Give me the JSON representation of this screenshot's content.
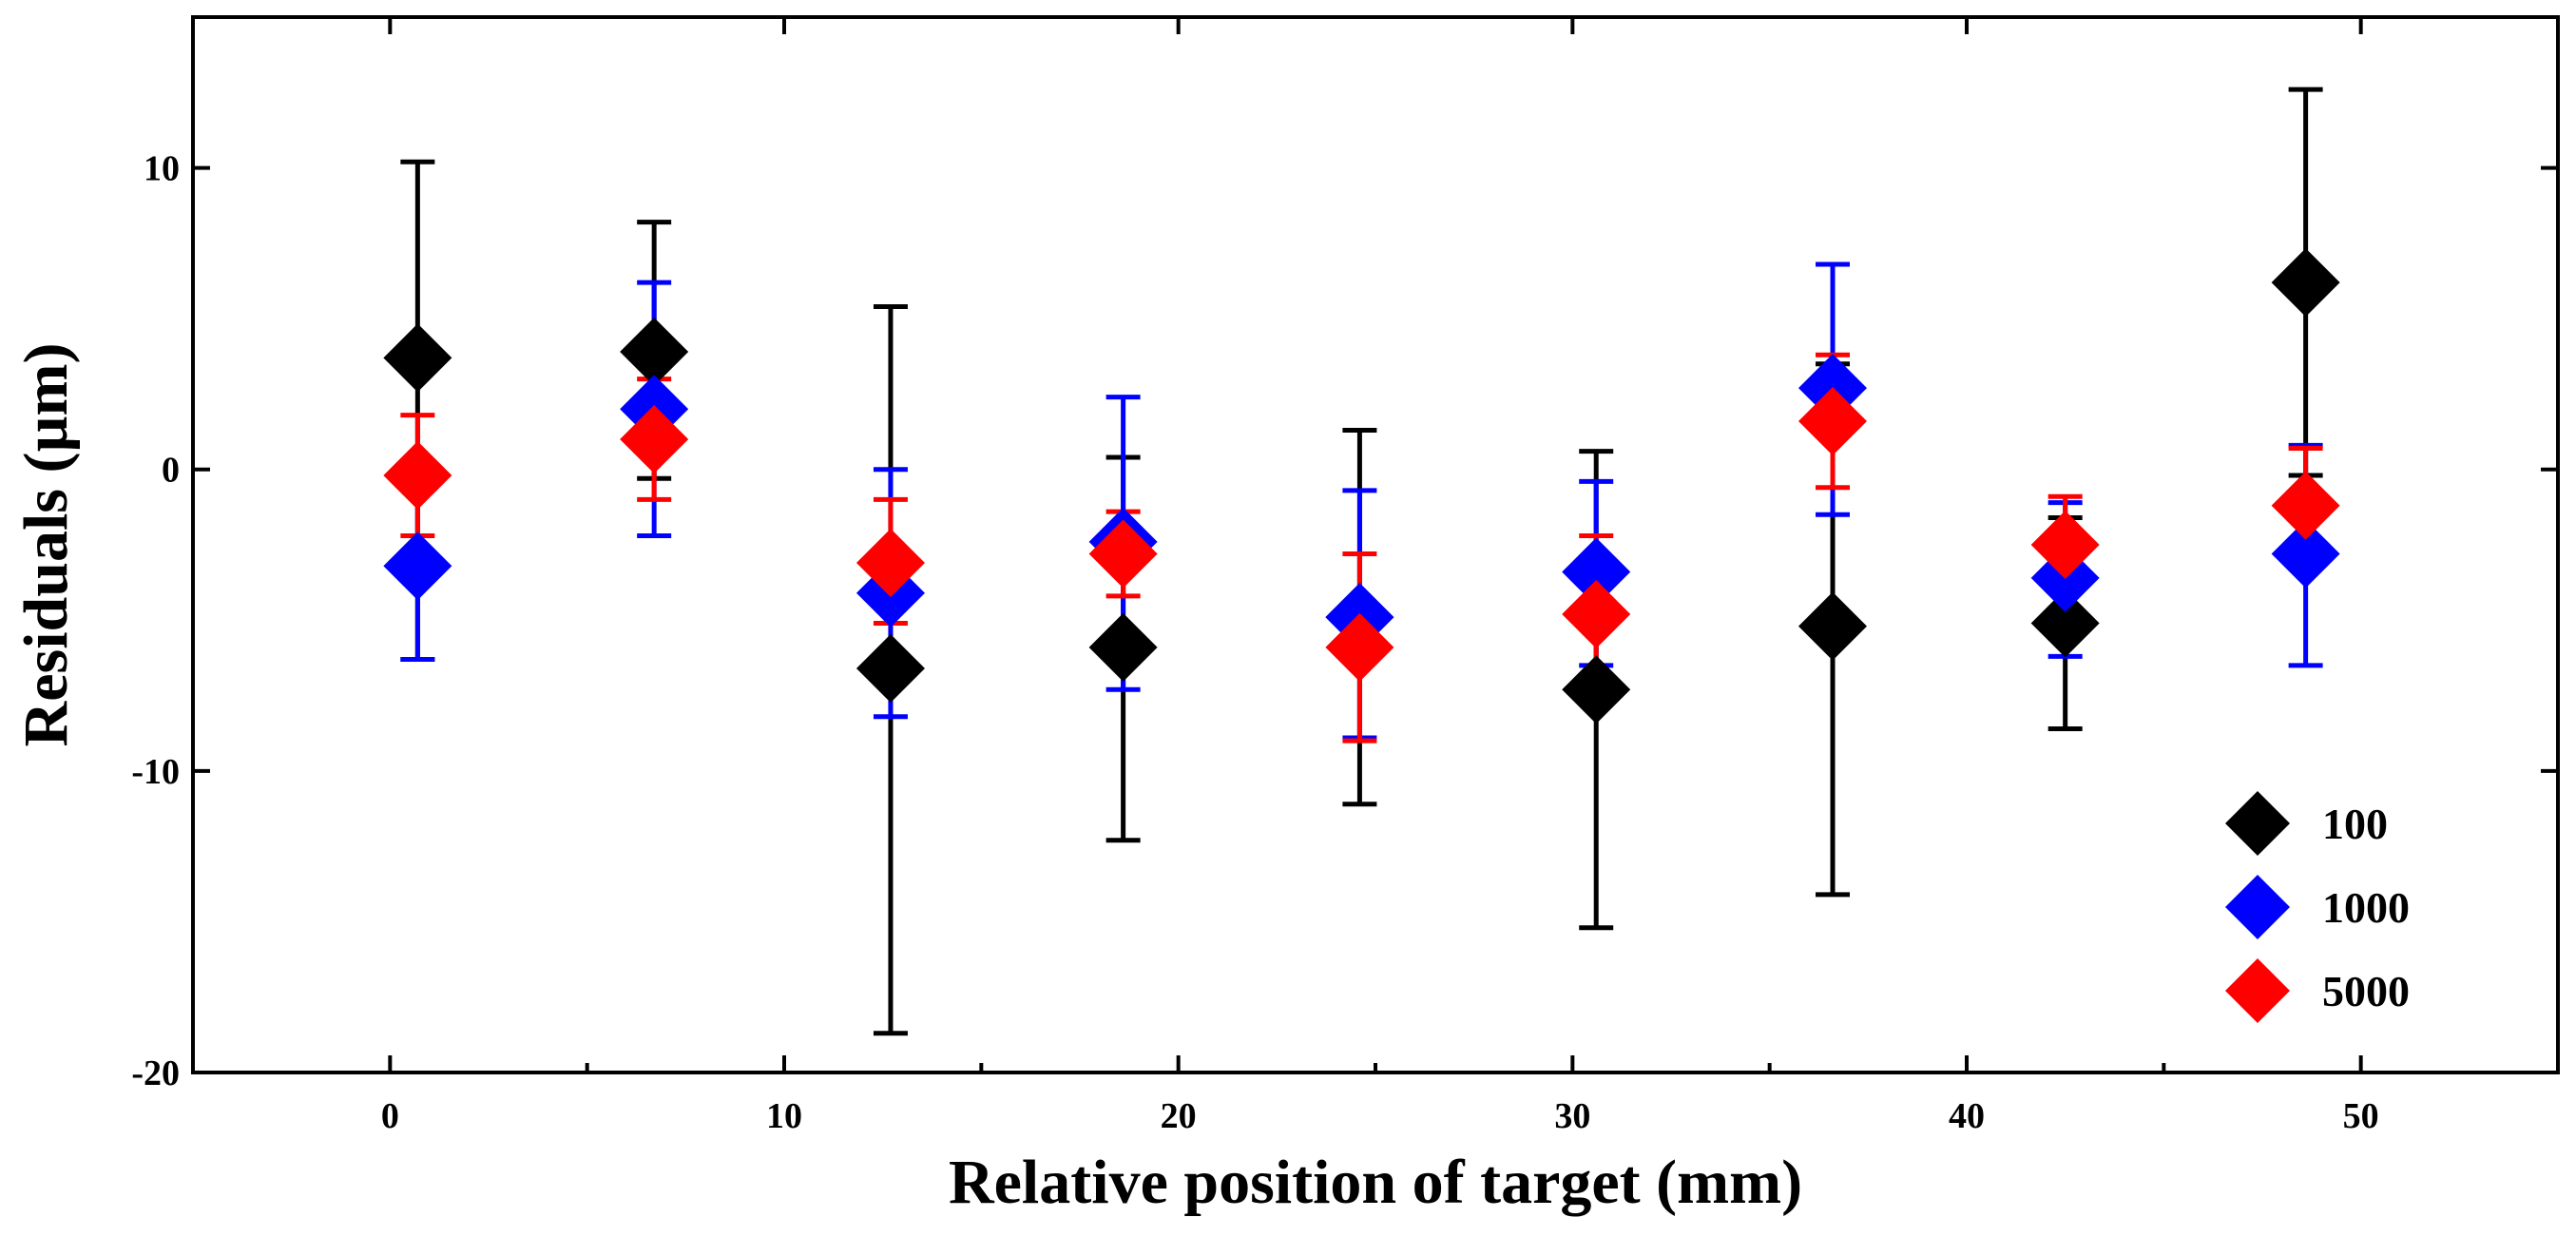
{
  "chart_data": {
    "type": "scatter",
    "title": "",
    "xlabel": "Relative position of target (mm)",
    "ylabel": "Residuals (µm)",
    "xlim": [
      -5,
      55
    ],
    "ylim": [
      -20,
      15
    ],
    "xticks": [
      0,
      10,
      20,
      30,
      40,
      50
    ],
    "xminor": [
      5,
      15,
      25,
      35,
      45
    ],
    "yticks": [
      -20,
      -10,
      0,
      10
    ],
    "xtick_labels": [
      "0",
      "10",
      "20",
      "30",
      "40",
      "50"
    ],
    "ytick_labels": [
      "-20",
      "-10",
      "0",
      "10"
    ],
    "legend_position": "bottom-right",
    "grid": false,
    "series": [
      {
        "name": "100",
        "color": "#000000",
        "x": [
          0.7,
          6.7,
          12.7,
          18.6,
          24.6,
          30.6,
          36.6,
          42.5,
          48.6
        ],
        "y": [
          3.7,
          3.9,
          -6.6,
          -5.9,
          -4.9,
          -7.3,
          -5.2,
          -5.1,
          6.2
        ],
        "err_low": [
          -6.3,
          -0.3,
          -18.7,
          -12.3,
          -11.1,
          -15.2,
          -14.1,
          -8.6,
          -0.2
        ],
        "err_high": [
          10.2,
          8.2,
          5.4,
          0.4,
          1.3,
          0.6,
          3.5,
          -1.6,
          12.6
        ]
      },
      {
        "name": "1000",
        "color": "#0000ff",
        "x": [
          0.7,
          6.7,
          12.7,
          18.6,
          24.6,
          30.6,
          36.6,
          42.5,
          48.6
        ],
        "y": [
          -3.2,
          2.0,
          -4.1,
          -2.4,
          -4.9,
          -3.4,
          2.7,
          -3.6,
          -2.8
        ],
        "err_low": [
          -6.3,
          -2.2,
          -8.2,
          -7.3,
          -8.9,
          -6.5,
          -1.5,
          -6.2,
          -6.5
        ],
        "err_high": [
          -0.2,
          6.2,
          0.0,
          2.4,
          -0.7,
          -0.4,
          6.8,
          -1.1,
          0.8
        ]
      },
      {
        "name": "5000",
        "color": "#ff0000",
        "x": [
          0.7,
          6.7,
          12.7,
          18.6,
          24.6,
          30.6,
          36.6,
          42.5,
          48.6
        ],
        "y": [
          -0.2,
          1.0,
          -3.1,
          -2.8,
          -5.9,
          -4.8,
          1.6,
          -2.5,
          -1.2
        ],
        "err_low": [
          -2.2,
          -1.0,
          -5.1,
          -4.2,
          -9.0,
          -7.3,
          -0.6,
          -3.6,
          -3.2
        ],
        "err_high": [
          1.8,
          3.0,
          -1.0,
          -1.4,
          -2.8,
          -2.2,
          3.8,
          -0.9,
          0.7
        ]
      }
    ]
  }
}
